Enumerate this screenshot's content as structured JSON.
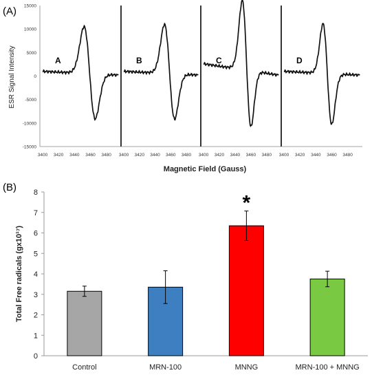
{
  "panel_labels": {
    "a": "(A)",
    "b": "(B)"
  },
  "chart_data": [
    {
      "type": "line",
      "ylabel": "ESR Signal Intensity",
      "xlabel": "Magnetic Field (Gauss)",
      "yticks": [
        "15000",
        "10000",
        "5000",
        "0",
        "-5000",
        "-10000",
        "-15000"
      ],
      "ylim": [
        -15000,
        15000
      ],
      "xlim": [
        3400,
        3495
      ],
      "subplots": [
        {
          "letter": "A",
          "xticks": [
            "3400",
            "3420",
            "3440",
            "3460",
            "3480"
          ],
          "baseline_start": 1000,
          "peak_x": 3452,
          "peak_y": 10000,
          "trough_x": 3466,
          "trough_y": -9500
        },
        {
          "letter": "B",
          "xticks": [
            "3400",
            "3420",
            "3440",
            "3460",
            "3480"
          ],
          "baseline_start": 1000,
          "peak_x": 3452,
          "peak_y": 10500,
          "trough_x": 3465,
          "trough_y": -9500
        },
        {
          "letter": "C",
          "xticks": [
            "3400",
            "3420",
            "3440",
            "3460",
            "3480"
          ],
          "baseline_start": 3000,
          "peak_x": 3449,
          "peak_y": 15000,
          "trough_x": 3460,
          "trough_y": -11500
        },
        {
          "letter": "D",
          "xticks": [
            "3400",
            "3420",
            "3440",
            "3460",
            "3480"
          ],
          "baseline_start": 1000,
          "peak_x": 3449,
          "peak_y": 10500,
          "trough_x": 3460,
          "trough_y": -10800
        }
      ]
    },
    {
      "type": "bar",
      "ylabel": "Total Free radicals (gx10¹⁷)",
      "ylim": [
        0,
        8
      ],
      "yticks": [
        "0",
        "1",
        "2",
        "3",
        "4",
        "5",
        "6",
        "7",
        "8"
      ],
      "categories": [
        "Control",
        "MRN-100",
        "MNNG",
        "MRN-100 + MNNG"
      ],
      "values": [
        3.15,
        3.35,
        6.35,
        3.75
      ],
      "errors": [
        0.25,
        0.8,
        0.72,
        0.38
      ],
      "colors": [
        "#a6a6a6",
        "#3d7fc1",
        "#ff0000",
        "#7ac943"
      ],
      "annotation": "*"
    }
  ]
}
